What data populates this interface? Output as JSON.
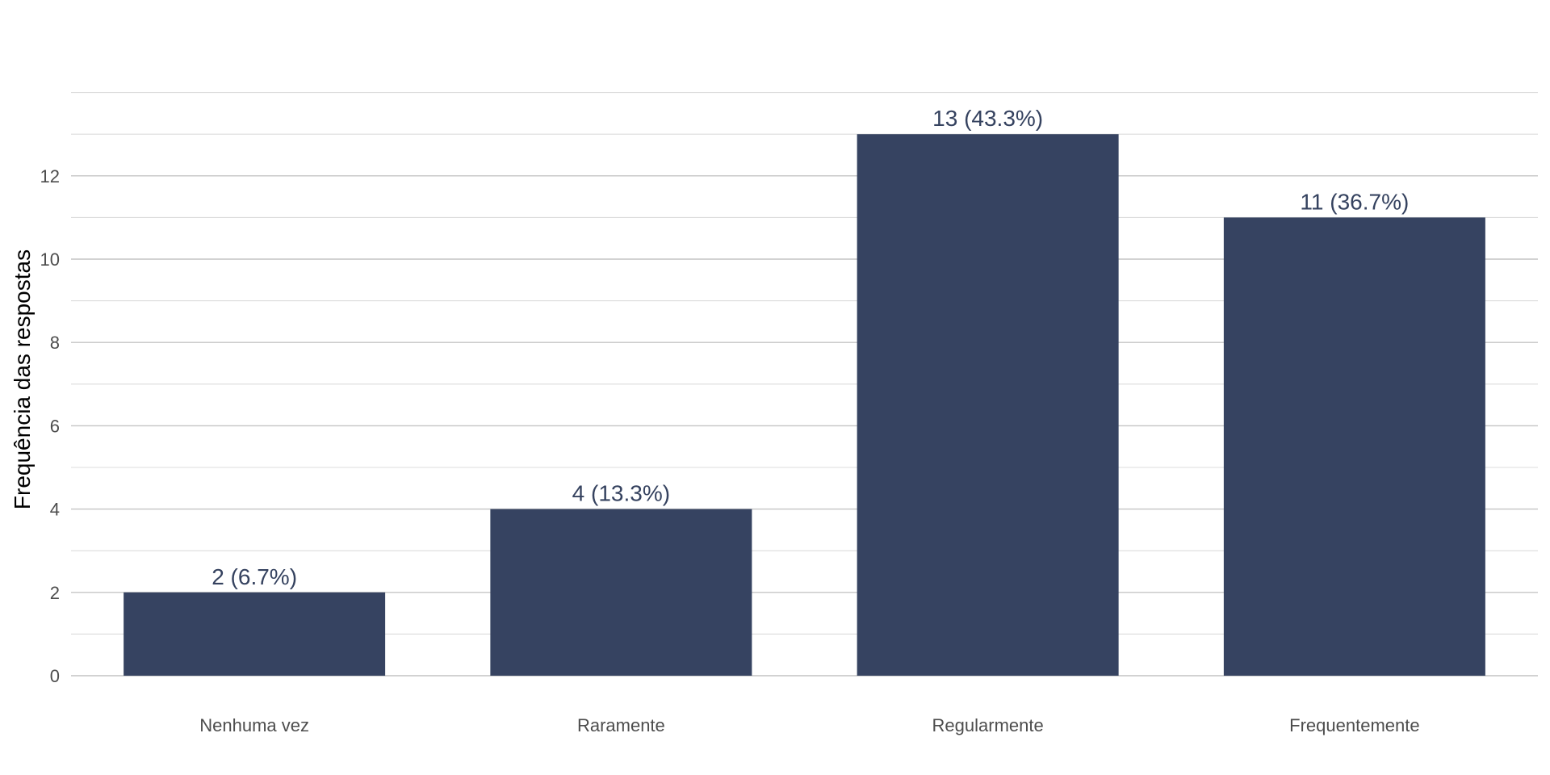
{
  "chart_data": {
    "type": "bar",
    "title": "",
    "xlabel": "",
    "ylabel": "Frequência das respostas",
    "categories": [
      "Nenhuma vez",
      "Raramente",
      "Regularmente",
      "Frequentemente"
    ],
    "values": [
      2,
      4,
      13,
      11
    ],
    "data_labels": [
      "2 (6.7%)",
      "4 (13.3%)",
      "13 (43.3%)",
      "11 (36.7%)"
    ],
    "ylim": [
      0,
      14
    ],
    "yticks": [
      0,
      2,
      4,
      6,
      8,
      10,
      12
    ],
    "ytick_labels": [
      "0",
      "2",
      "4",
      "6",
      "8",
      "10",
      "12"
    ],
    "minor_gridlines": [
      1,
      3,
      5,
      7,
      9,
      11,
      13,
      14
    ],
    "grid": true,
    "legend": "none",
    "colors": {
      "bar": "#364361",
      "data_label": "#35425f",
      "grid_major": "#c4c4c4",
      "grid_minor": "#dcdcdc",
      "tick_label": "#4d4d4d"
    }
  }
}
